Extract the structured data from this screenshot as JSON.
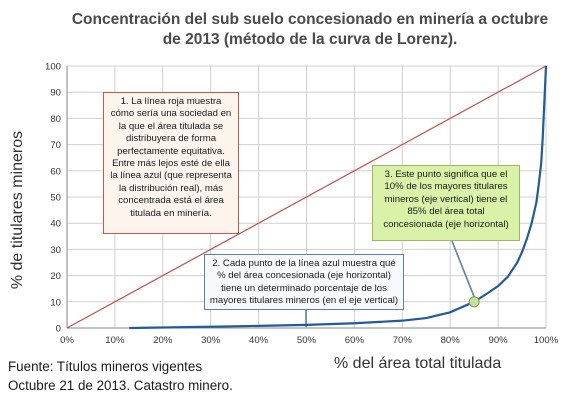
{
  "chart_data": {
    "type": "line",
    "title_lines": [
      "Concentración del sub suelo concesionado en minería a octubre",
      "de 2013 (método de la curva de Lorenz)."
    ],
    "xlabel": "% del área total titulada",
    "ylabel": "% de titulares mineros",
    "xlim": [
      0,
      100
    ],
    "ylim": [
      0,
      100
    ],
    "x_ticks": [
      "0%",
      "10%",
      "20%",
      "30%",
      "40%",
      "50%",
      "60%",
      "70%",
      "80%",
      "90%",
      "100%"
    ],
    "y_ticks": [
      "0",
      "10",
      "20",
      "30",
      "40",
      "50",
      "60",
      "70",
      "80",
      "90",
      "100"
    ],
    "grid": true,
    "series": [
      {
        "color": "#c0504d",
        "x": [
          0,
          100
        ],
        "y": [
          0,
          100
        ]
      },
      {
        "color": "#1f5b9e",
        "x": [
          13,
          20,
          30,
          40,
          50,
          60,
          70,
          75,
          80,
          85,
          88,
          90,
          92,
          94,
          95,
          96,
          97,
          98,
          98.5,
          99,
          99.3,
          99.6,
          100
        ],
        "y": [
          0,
          0.2,
          0.5,
          0.8,
          1.2,
          1.8,
          2.8,
          3.8,
          6,
          10,
          13.5,
          16,
          19.5,
          25,
          29,
          34,
          40,
          48,
          55,
          63,
          72,
          84,
          100
        ]
      }
    ],
    "highlight_point": {
      "x": 85,
      "y": 10,
      "color": "#c6e29a"
    },
    "annotations": [
      "1. La línea roja muestra cómo sería una sociedad en la que el área titulada se distribuyera de forma perfectamente equitativa. Entre más lejos esté de ella la línea azul (que representa la distribución real), más concentrada está el área titulada en minería.",
      "2. Cada punto de la línea azul muestra qué % del área concesionada (eje horizontal) tiene un determinado porcentaje de los mayores titulares mineros (en el eje vertical)",
      "3. Este punto significa que el 10% de los mayores titulares mineros (eje vertical) tiene el 85% del área total concesionada (eje horizontal)"
    ],
    "source_lines": [
      "Fuente: Títulos mineros vigentes",
      "Octubre 21 de 2013. Catastro minero."
    ]
  }
}
